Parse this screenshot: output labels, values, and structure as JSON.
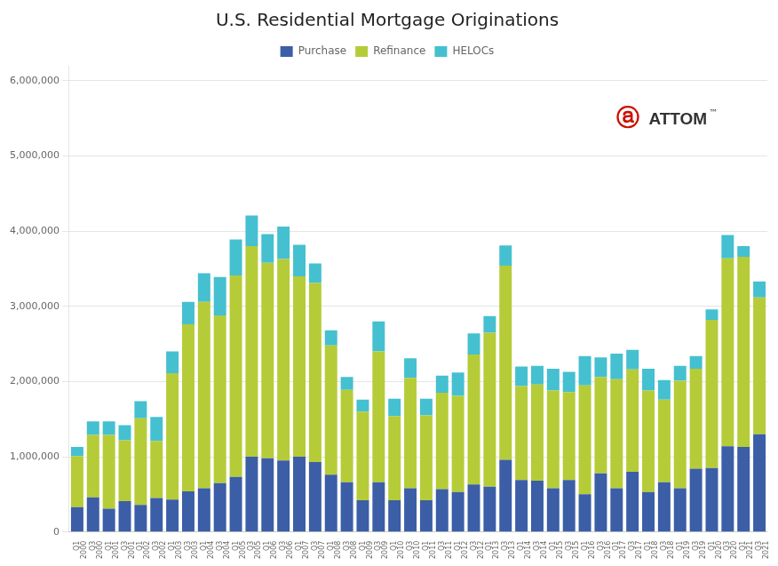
{
  "chart_data": {
    "type": "bar",
    "title": "U.S. Residential Mortgage Originations",
    "stacked": true,
    "grid": true,
    "legend": "top",
    "annotations": [
      "ⓐ",
      "ATTOM",
      "™"
    ],
    "categories": [
      "Q1\n2000",
      "Q3\n2000",
      "Q1\n2001",
      "Q3\n2001",
      "Q1\n2002",
      "Q3\n2002",
      "Q1\n2003",
      "Q3\n2003",
      "Q1\n2004",
      "Q3\n2004",
      "Q1\n2005",
      "Q3\n2005",
      "Q1\n2006",
      "Q3\n2006",
      "Q1\n2007",
      "Q3\n2007",
      "Q1\n2008",
      "Q3\n2008",
      "Q1\n2009",
      "Q3\n2009",
      "Q1\n2010",
      "Q3\n2010",
      "Q1\n2011",
      "Q3\n2011",
      "Q1\n2012",
      "Q3\n2012",
      "Q1\n2013",
      "Q3\n2013",
      "Q1\n2014",
      "Q3\n2014",
      "Q1\n2015",
      "Q3\n2015",
      "Q1\n2016",
      "Q3\n2016",
      "Q1\n2017",
      "Q3\n2017",
      "Q1\n2018",
      "Q3\n2018",
      "Q1\n2019",
      "Q3\n2019",
      "Q1\n2020",
      "Q3\n2020",
      "Q1\n2021",
      "Q3\n2021"
    ],
    "series": [
      {
        "name": "Purchase",
        "color": "#3b5ea6",
        "values": [
          330000,
          460000,
          310000,
          410000,
          360000,
          450000,
          430000,
          540000,
          580000,
          650000,
          730000,
          1000000,
          980000,
          950000,
          1000000,
          930000,
          760000,
          660000,
          420000,
          660000,
          420000,
          580000,
          420000,
          570000,
          530000,
          630000,
          600000,
          960000,
          690000,
          680000,
          580000,
          690000,
          500000,
          780000,
          580000,
          800000,
          530000,
          660000,
          580000,
          840000,
          850000,
          1140000,
          1130000,
          1300000
        ]
      },
      {
        "name": "Refinance",
        "color": "#b5cc38",
        "values": [
          680000,
          830000,
          980000,
          810000,
          1150000,
          760000,
          1680000,
          2220000,
          2480000,
          2230000,
          2680000,
          2800000,
          2600000,
          2680000,
          2400000,
          2380000,
          1720000,
          1230000,
          1180000,
          1740000,
          1120000,
          1470000,
          1130000,
          1280000,
          1280000,
          1730000,
          2050000,
          2580000,
          1250000,
          1280000,
          1300000,
          1170000,
          1450000,
          1280000,
          1450000,
          1360000,
          1350000,
          1100000,
          1430000,
          1330000,
          1970000,
          2500000,
          2530000,
          1820000
        ]
      },
      {
        "name": "HELOCs",
        "color": "#45c0d0",
        "values": [
          120000,
          180000,
          180000,
          200000,
          230000,
          320000,
          290000,
          300000,
          380000,
          510000,
          480000,
          410000,
          380000,
          430000,
          420000,
          260000,
          200000,
          170000,
          160000,
          400000,
          230000,
          260000,
          220000,
          230000,
          310000,
          280000,
          220000,
          270000,
          260000,
          250000,
          290000,
          270000,
          390000,
          260000,
          340000,
          260000,
          290000,
          260000,
          200000,
          170000,
          140000,
          310000,
          140000,
          210000
        ]
      }
    ],
    "ylim": [
      0,
      6200000
    ],
    "yticks": [
      0,
      {
        "value": 1000000,
        "label": "1,000,000"
      },
      {
        "value": 2000000,
        "label": "2,000,000"
      },
      {
        "value": 3000000,
        "label": "3,000,000"
      },
      {
        "value": 4000000,
        "label": "4,000,000"
      },
      {
        "value": 5000000,
        "label": "5,000,000"
      },
      {
        "value": 6000000,
        "label": "6,000,000"
      }
    ]
  }
}
